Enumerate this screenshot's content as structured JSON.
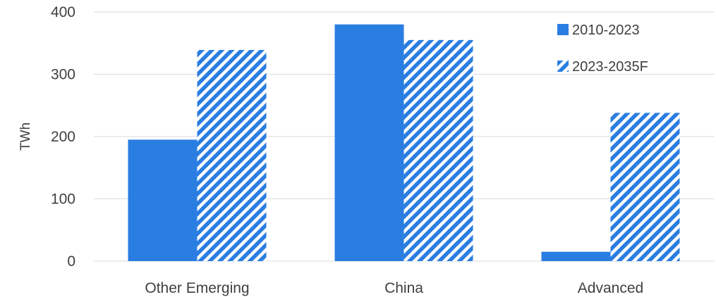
{
  "chart_data": {
    "type": "bar",
    "categories": [
      "Other Emerging",
      "China",
      "Advanced"
    ],
    "series": [
      {
        "name": "2010-2023",
        "values": [
          195,
          380,
          15
        ],
        "color": "#2a7de1",
        "fill": "solid"
      },
      {
        "name": "2023-2035F",
        "values": [
          339,
          355,
          238
        ],
        "color": "#2a7de1",
        "fill": "hatched"
      }
    ],
    "ylabel": "TWh",
    "xlabel": "",
    "ylim": [
      0,
      400
    ],
    "yticks": [
      0,
      100,
      200,
      300,
      400
    ],
    "grid": true,
    "legend": "top-right"
  }
}
